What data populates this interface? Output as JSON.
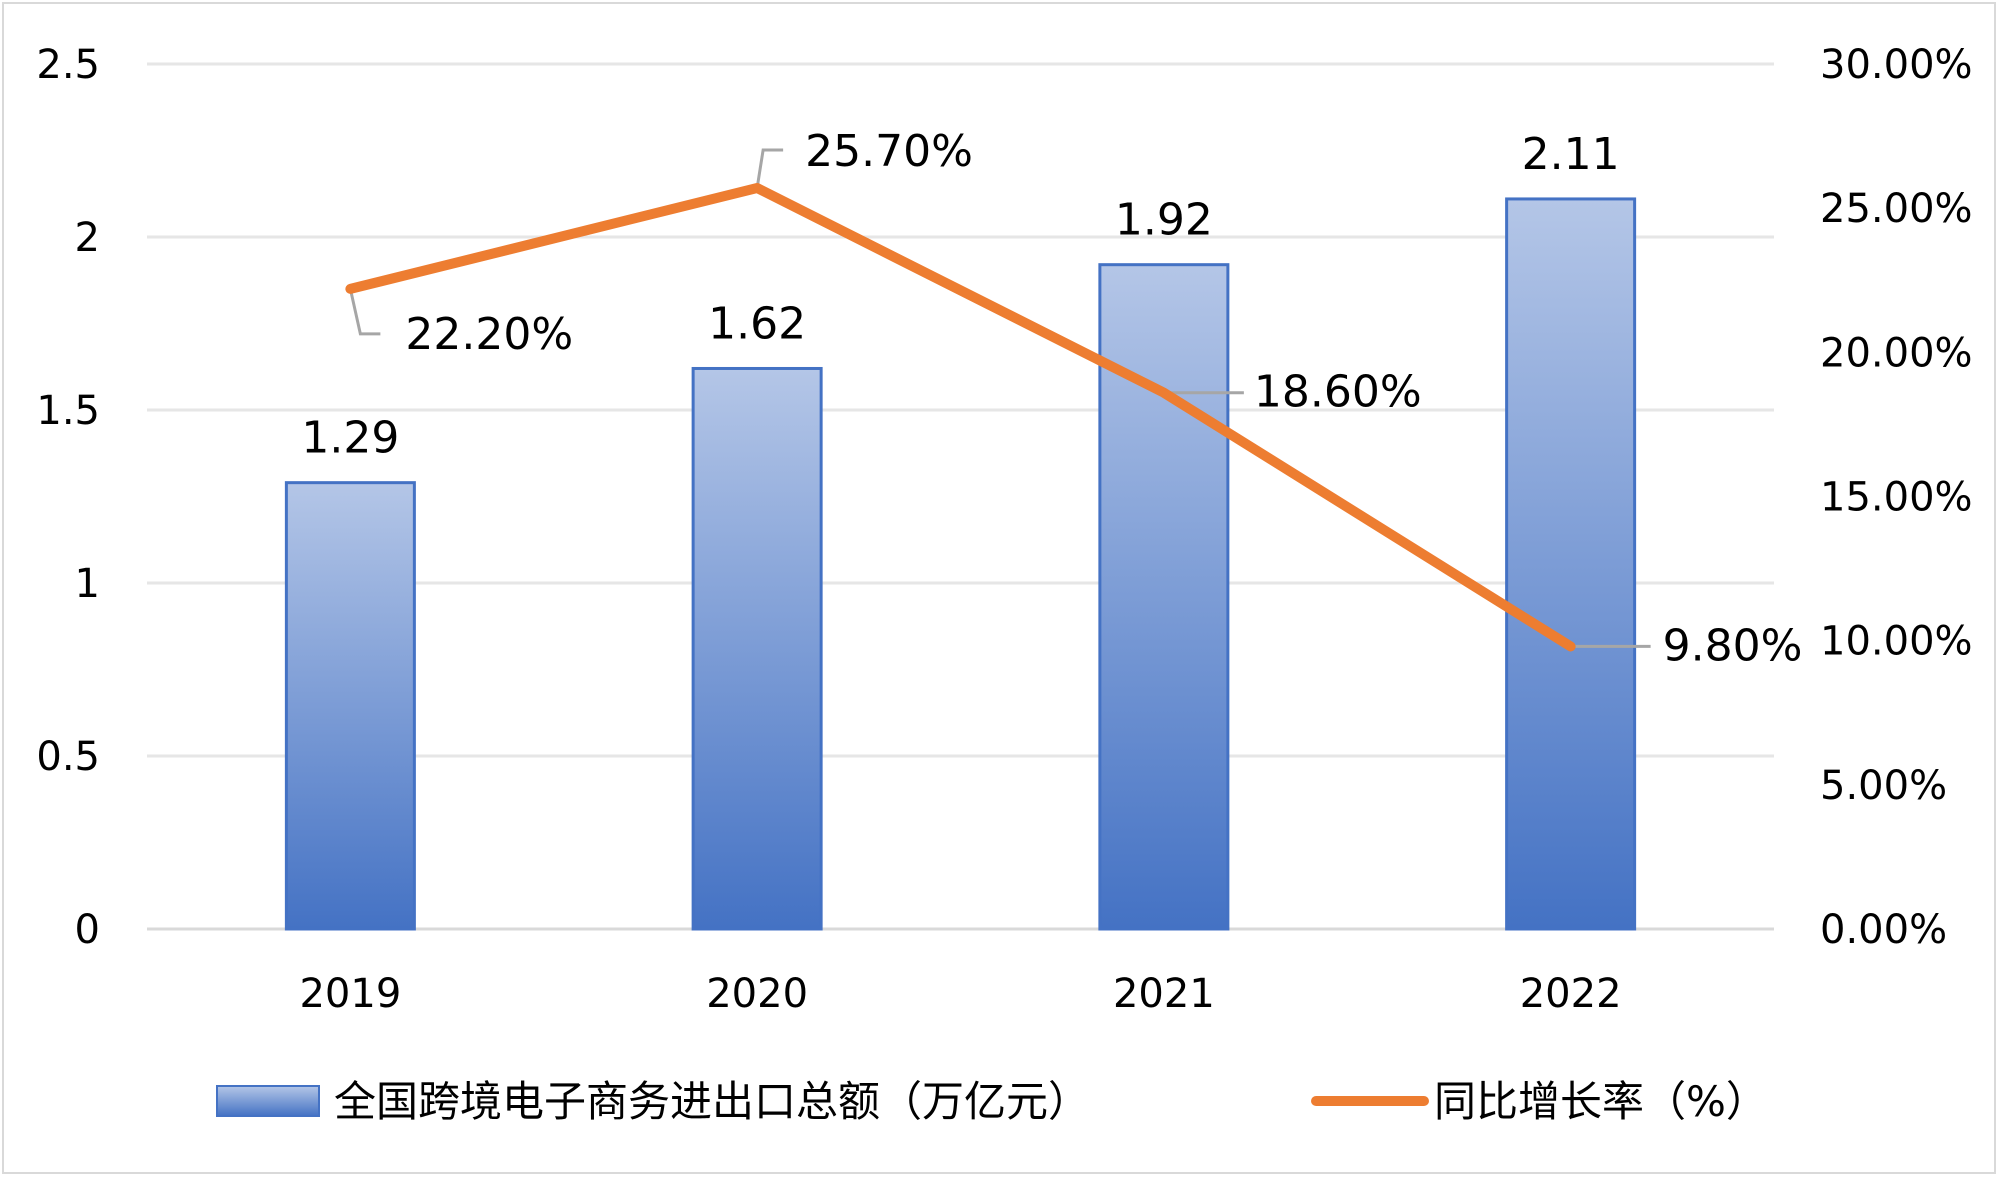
{
  "chart_data": {
    "type": "bar",
    "categories": [
      "2019",
      "2020",
      "2021",
      "2022"
    ],
    "series": [
      {
        "name": "全国跨境电子商务进出口总额（万亿元）",
        "type": "bar",
        "axis": "left",
        "values": [
          1.29,
          1.62,
          1.92,
          2.11
        ],
        "labels": [
          "1.29",
          "1.62",
          "1.92",
          "2.11"
        ],
        "color": "#4472C4"
      },
      {
        "name": "同比增长率（%）",
        "type": "line",
        "axis": "right",
        "values": [
          22.2,
          25.7,
          18.6,
          9.8
        ],
        "labels": [
          "22.20%",
          "25.70%",
          "18.60%",
          "9.80%"
        ],
        "color": "#ED7D31"
      }
    ],
    "left_axis": {
      "ylim": [
        0,
        2.5
      ],
      "ticks": [
        0,
        0.5,
        1,
        1.5,
        2,
        2.5
      ],
      "tick_labels": [
        "0",
        "0.5",
        "1",
        "1.5",
        "2",
        "2.5"
      ]
    },
    "right_axis": {
      "ylim": [
        0,
        30
      ],
      "ticks": [
        0,
        5,
        10,
        15,
        20,
        25,
        30
      ],
      "tick_labels": [
        "0.00%",
        "5.00%",
        "10.00%",
        "15.00%",
        "20.00%",
        "25.00%",
        "30.00%"
      ]
    },
    "grid": true,
    "legend": "bottom"
  }
}
